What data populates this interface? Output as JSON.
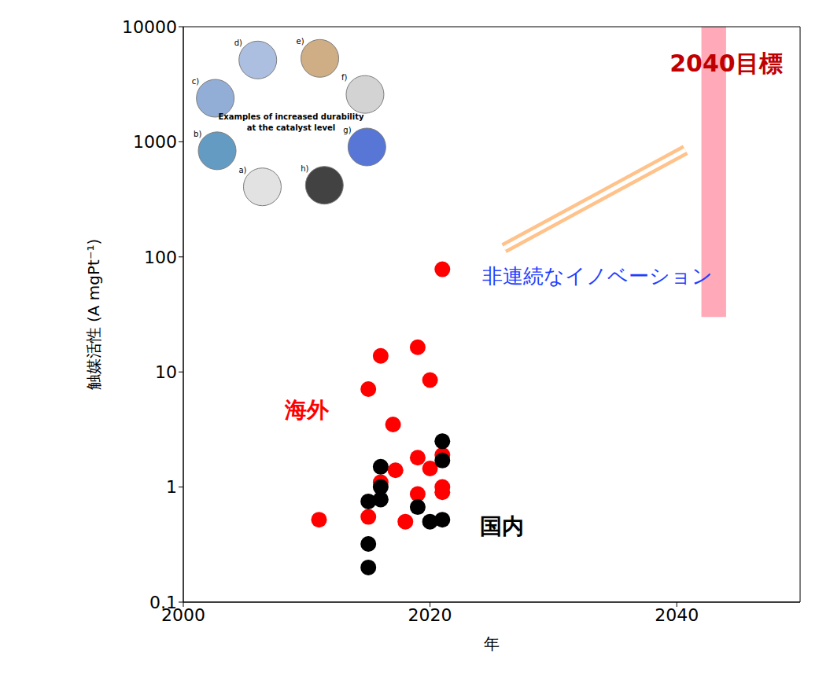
{
  "chart_data": {
    "type": "scatter",
    "x_label": "年",
    "y_label": "触媒活性 (A mgPt⁻¹)",
    "log": "y",
    "grid": false,
    "xlim": [
      2000,
      2050
    ],
    "xticks": [
      2000,
      2020,
      2040
    ],
    "ylim": [
      0.1,
      10000
    ],
    "yticks": [
      0.1,
      1,
      10,
      100,
      1000,
      10000
    ],
    "series": [
      {
        "name": "海外",
        "color": "#ff0000",
        "marker": "circle",
        "label": {
          "x": 2010,
          "y": 4.7
        },
        "x": [
          2011,
          2015,
          2015,
          2016,
          2016,
          2017,
          2017.2,
          2018,
          2019,
          2019,
          2019,
          2020,
          2020,
          2021,
          2021,
          2021,
          2021
        ],
        "values": [
          0.52,
          7.1,
          0.55,
          1.1,
          13.8,
          3.5,
          1.4,
          0.5,
          16.4,
          1.8,
          0.87,
          8.5,
          1.45,
          78,
          1.9,
          1.0,
          0.9
        ]
      },
      {
        "name": "国内",
        "color": "#000000",
        "marker": "circle",
        "label": {
          "x": 2025.8,
          "y": 0.46
        },
        "x": [
          2015,
          2015,
          2015,
          2016,
          2016,
          2016,
          2019,
          2020,
          2021,
          2021,
          2021
        ],
        "values": [
          0.75,
          0.32,
          0.2,
          1.5,
          1.0,
          0.78,
          0.67,
          0.5,
          2.5,
          1.7,
          0.52
        ]
      }
    ],
    "annotations": [
      {
        "text": "2040目標",
        "x": 2044,
        "y": 4800,
        "color": "#c00000"
      },
      {
        "text": "非連続なイノベーション",
        "x": 2033.6,
        "y": 69,
        "color": "#1f3fff"
      }
    ],
    "target_band": {
      "x": [
        2042,
        2044
      ],
      "y": [
        30,
        10000
      ],
      "color": "#ff6f8a"
    },
    "arrow": {
      "x": [
        2026,
        2040.7
      ],
      "y": [
        119,
        850
      ],
      "color": "#ff9a3c"
    },
    "inset": {
      "title": "Examples of increased durability at the catalyst level",
      "labels": [
        "a)",
        "b)",
        "c)",
        "d)",
        "e)",
        "f)",
        "g)",
        "h)"
      ]
    }
  }
}
